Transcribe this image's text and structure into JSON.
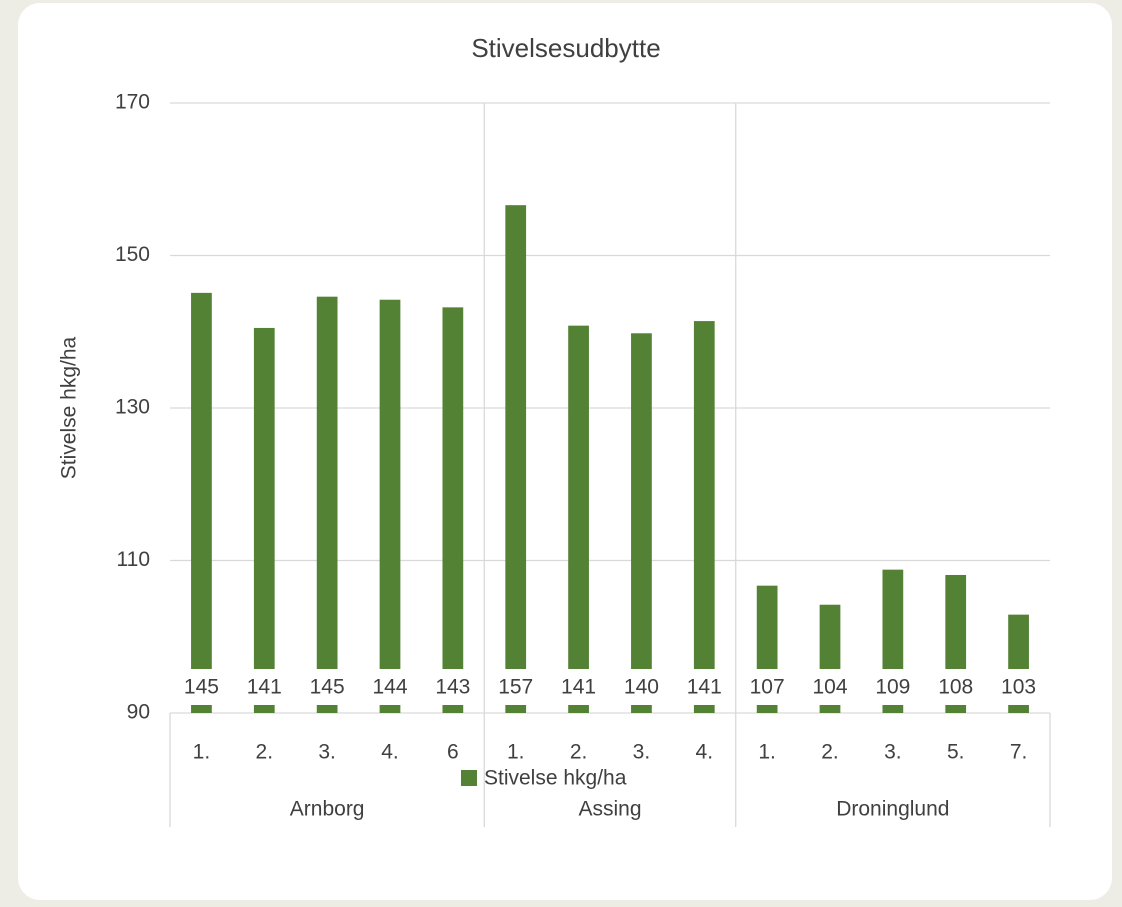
{
  "chart_data": {
    "type": "bar",
    "title": "Stivelsesudbytte",
    "y_label": "Stivelse hkg/ha",
    "groups": [
      {
        "name": "Arnborg",
        "categories": [
          "1.",
          "2.",
          "3.",
          "4.",
          "6"
        ]
      },
      {
        "name": "Assing",
        "categories": [
          "1.",
          "2.",
          "3.",
          "4."
        ]
      },
      {
        "name": "Droninglund",
        "categories": [
          "1.",
          "2.",
          "3.",
          "5.",
          "7."
        ]
      }
    ],
    "series": [
      {
        "name": "Stivelse hkg/ha",
        "color": "#548235",
        "values": [
          145.1,
          140.5,
          144.6,
          144.2,
          143.2,
          156.6,
          140.8,
          139.8,
          141.4,
          106.7,
          104.2,
          108.8,
          108.1,
          102.9
        ],
        "value_labels": [
          "145",
          "141",
          "145",
          "144",
          "143",
          "157",
          "141",
          "140",
          "141",
          "107",
          "104",
          "109",
          "108",
          "103"
        ]
      }
    ],
    "ylim": [
      90,
      170
    ],
    "yticks": [
      90,
      110,
      130,
      150,
      170
    ],
    "grid": true,
    "legend": "bottom"
  }
}
